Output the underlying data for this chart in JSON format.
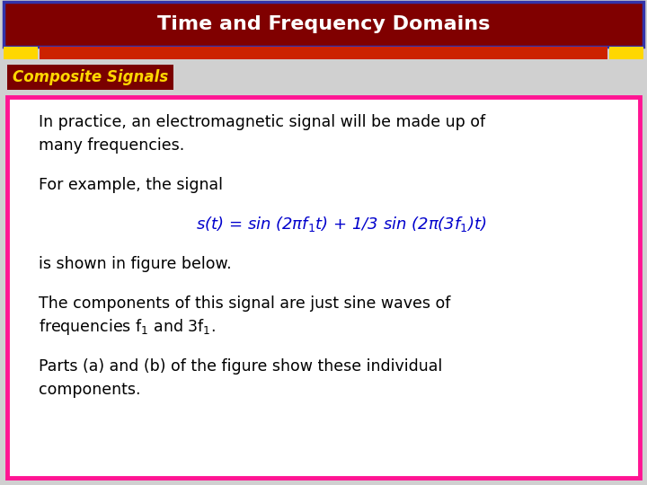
{
  "title": "Time and Frequency Domains",
  "title_bg": "#800000",
  "title_border": "#3333AA",
  "title_color": "#ffffff",
  "title_fontsize": 16,
  "stripe1_color": "#FFD700",
  "stripe2_color": "#CC2200",
  "subtitle": "Composite Signals",
  "subtitle_bg": "#7a0000",
  "subtitle_color": "#FFD700",
  "subtitle_fontsize": 12,
  "body_border_color": "#FF1493",
  "body_bg": "#ffffff",
  "body_text_color": "#000000",
  "body_fontsize": 12.5,
  "equation_color": "#0000CC",
  "equation_fontsize": 13,
  "line1": "In practice, an electromagnetic signal will be made up of",
  "line2": "many frequencies.",
  "line3": "For example, the signal",
  "line5": "is shown in figure below.",
  "line6": "The components of this signal are just sine waves of",
  "line8": "Parts (a) and (b) of the figure show these individual",
  "line9": "components.",
  "bg_color": "#d0d0d0"
}
